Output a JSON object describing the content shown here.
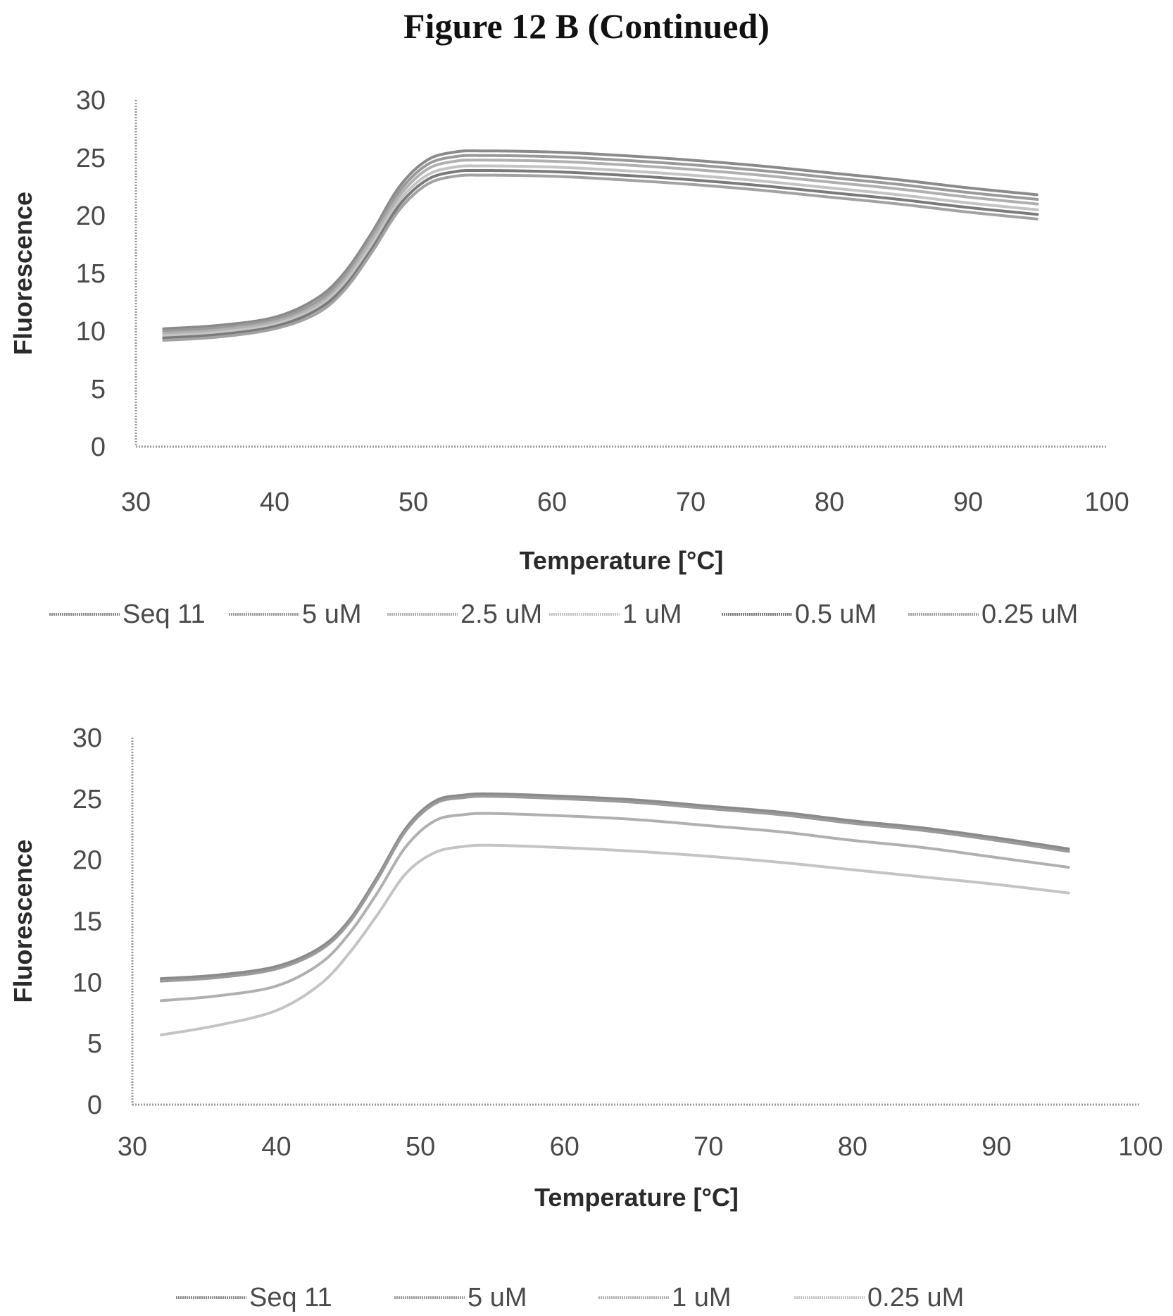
{
  "title": "Figure 12 B (Continued)",
  "colors": {
    "line": "#8c8c8c",
    "axis": "#9a9a9a",
    "text": "#4a4a4a"
  },
  "chart_data": [
    {
      "type": "line",
      "xlabel": "Temperature [°C]",
      "ylabel": "Fluorescence",
      "xlim": [
        30,
        100
      ],
      "ylim": [
        0,
        30
      ],
      "xticks": [
        "30",
        "40",
        "50",
        "60",
        "70",
        "80",
        "90",
        "100"
      ],
      "yticks": [
        "0",
        "5",
        "10",
        "15",
        "20",
        "25",
        "30"
      ],
      "grid": false,
      "legend_position": "bottom",
      "x": [
        32,
        36,
        40,
        43,
        45,
        47,
        49,
        51,
        53,
        55,
        60,
        65,
        70,
        75,
        80,
        85,
        90,
        95
      ],
      "series": [
        {
          "name": "Seq 11",
          "values": [
            10.2,
            10.5,
            11.2,
            12.8,
            15.0,
            18.5,
            22.5,
            24.8,
            25.5,
            25.6,
            25.5,
            25.2,
            24.8,
            24.3,
            23.7,
            23.1,
            22.4,
            21.8
          ]
        },
        {
          "name": "5 uM",
          "values": [
            10.0,
            10.3,
            11.0,
            12.5,
            14.7,
            18.2,
            22.1,
            24.4,
            25.1,
            25.2,
            25.1,
            24.8,
            24.4,
            23.9,
            23.3,
            22.7,
            22.0,
            21.4
          ]
        },
        {
          "name": "2.5 uM",
          "values": [
            9.8,
            10.1,
            10.8,
            12.2,
            14.4,
            17.9,
            21.7,
            24.0,
            24.7,
            24.8,
            24.7,
            24.4,
            24.0,
            23.5,
            22.9,
            22.3,
            21.6,
            21.0
          ]
        },
        {
          "name": "1 uM",
          "values": [
            9.6,
            9.9,
            10.6,
            12.0,
            14.1,
            17.5,
            21.3,
            23.5,
            24.2,
            24.3,
            24.2,
            23.9,
            23.5,
            23.0,
            22.4,
            21.8,
            21.1,
            20.5
          ]
        },
        {
          "name": "0.5 uM",
          "values": [
            9.4,
            9.7,
            10.4,
            11.8,
            13.8,
            17.1,
            20.9,
            23.1,
            23.8,
            23.9,
            23.8,
            23.5,
            23.1,
            22.6,
            22.0,
            21.4,
            20.7,
            20.1
          ]
        },
        {
          "name": "0.25 uM",
          "values": [
            9.2,
            9.5,
            10.2,
            11.5,
            13.5,
            16.8,
            20.5,
            22.7,
            23.4,
            23.5,
            23.4,
            23.1,
            22.7,
            22.2,
            21.6,
            21.0,
            20.3,
            19.7
          ]
        }
      ]
    },
    {
      "type": "line",
      "xlabel": "Temperature [°C]",
      "ylabel": "Fluorescence",
      "xlim": [
        30,
        100
      ],
      "ylim": [
        0,
        30
      ],
      "xticks": [
        "30",
        "40",
        "50",
        "60",
        "70",
        "80",
        "90",
        "100"
      ],
      "yticks": [
        "0",
        "5",
        "10",
        "15",
        "20",
        "25",
        "30"
      ],
      "grid": false,
      "legend_position": "bottom",
      "x": [
        32,
        36,
        40,
        43,
        45,
        47,
        49,
        51,
        53,
        55,
        60,
        65,
        70,
        75,
        80,
        85,
        90,
        95
      ],
      "series": [
        {
          "name": "Seq 11",
          "values": [
            10.3,
            10.6,
            11.3,
            12.8,
            15.0,
            18.6,
            22.6,
            24.8,
            25.3,
            25.4,
            25.2,
            24.9,
            24.4,
            23.9,
            23.2,
            22.6,
            21.8,
            20.9
          ]
        },
        {
          "name": "5 uM",
          "values": [
            10.1,
            10.4,
            11.1,
            12.6,
            14.8,
            18.4,
            22.4,
            24.6,
            25.1,
            25.2,
            25.0,
            24.7,
            24.2,
            23.7,
            23.0,
            22.4,
            21.6,
            20.7
          ]
        },
        {
          "name": "1 uM",
          "values": [
            8.5,
            8.9,
            9.7,
            11.5,
            13.9,
            17.3,
            21.1,
            23.2,
            23.7,
            23.8,
            23.6,
            23.3,
            22.8,
            22.3,
            21.6,
            21.0,
            20.2,
            19.4
          ]
        },
        {
          "name": "0.25 uM",
          "values": [
            5.7,
            6.5,
            7.7,
            9.8,
            12.3,
            15.5,
            18.9,
            20.6,
            21.1,
            21.2,
            21.0,
            20.7,
            20.3,
            19.8,
            19.2,
            18.6,
            18.0,
            17.3
          ]
        }
      ]
    }
  ]
}
